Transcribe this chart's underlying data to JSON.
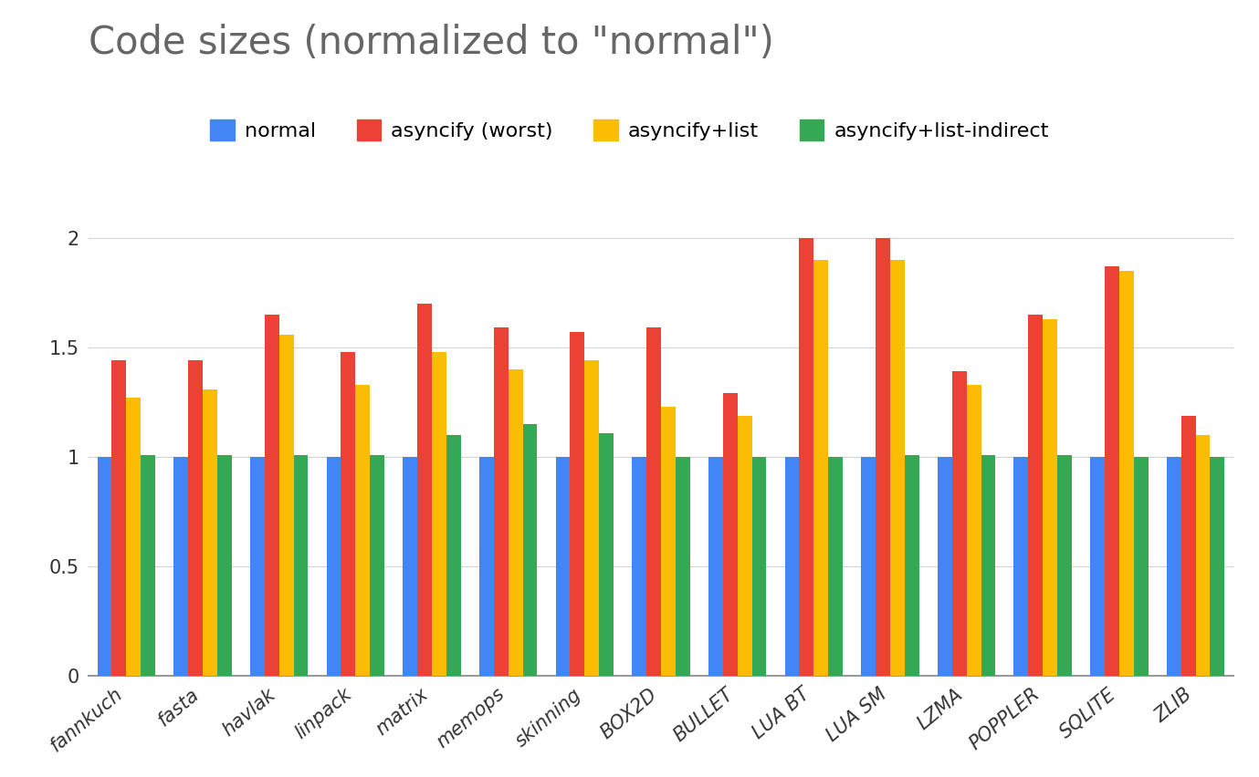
{
  "title": "Code sizes (normalized to \"normal\")",
  "categories": [
    "fannkuch",
    "fasta",
    "havlak",
    "linpack",
    "matrix",
    "memops",
    "skinning",
    "BOX2D",
    "BULLET",
    "LUA BT",
    "LUA SM",
    "LZMA",
    "POPPLER",
    "SQLITE",
    "ZLIB"
  ],
  "series": {
    "normal": [
      1.0,
      1.0,
      1.0,
      1.0,
      1.0,
      1.0,
      1.0,
      1.0,
      1.0,
      1.0,
      1.0,
      1.0,
      1.0,
      1.0,
      1.0
    ],
    "asyncify_worst": [
      1.44,
      1.44,
      1.65,
      1.48,
      1.7,
      1.59,
      1.57,
      1.59,
      1.29,
      2.0,
      2.0,
      1.39,
      1.65,
      1.87,
      1.19
    ],
    "asyncify_list": [
      1.27,
      1.31,
      1.56,
      1.33,
      1.48,
      1.4,
      1.44,
      1.23,
      1.19,
      1.9,
      1.9,
      1.33,
      1.63,
      1.85,
      1.1
    ],
    "asyncify_list_indirect": [
      1.01,
      1.01,
      1.01,
      1.01,
      1.1,
      1.15,
      1.11,
      1.0,
      1.0,
      1.0,
      1.01,
      1.01,
      1.01,
      1.0,
      1.0
    ]
  },
  "colors": {
    "normal": "#4285F4",
    "asyncify_worst": "#EA4335",
    "asyncify_list": "#FBBC04",
    "asyncify_list_indirect": "#34A853"
  },
  "legend_labels": [
    "normal",
    "asyncify (worst)",
    "asyncify+list",
    "asyncify+list-indirect"
  ],
  "ylim": [
    0,
    2.2
  ],
  "yticks": [
    0,
    0.5,
    1.0,
    1.5,
    2.0
  ],
  "ytick_labels": [
    "0",
    "0.5",
    "1",
    "1.5",
    "2"
  ],
  "background_color": "#ffffff",
  "title_fontsize": 30,
  "tick_fontsize": 15,
  "legend_fontsize": 16,
  "title_color": "#666666",
  "tick_color": "#333333"
}
